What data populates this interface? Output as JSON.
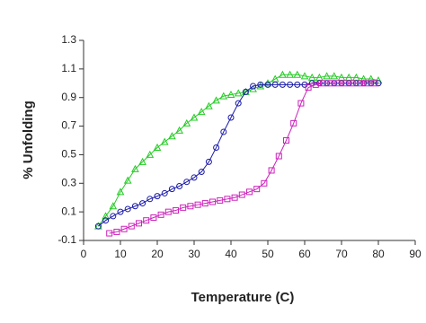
{
  "chart_data": {
    "type": "line",
    "xlabel": "Temperature (C)",
    "ylabel": "% Unfolding",
    "xlim": [
      0,
      90
    ],
    "xticks": [
      0,
      10,
      20,
      30,
      40,
      50,
      60,
      70,
      80,
      90
    ],
    "ylim": [
      -0.1,
      1.3
    ],
    "yticks": [
      -0.1,
      0.1,
      0.3,
      0.5,
      0.7,
      0.9,
      1.1,
      1.3
    ],
    "grid": false,
    "series": [
      {
        "color": "#22cc22",
        "marker": "triangle",
        "x": [
          4,
          6,
          8,
          10,
          12,
          14,
          16,
          18,
          20,
          22,
          24,
          26,
          28,
          30,
          32,
          34,
          36,
          38,
          40,
          42,
          44,
          46,
          48,
          50,
          52,
          54,
          56,
          58,
          60,
          62,
          64,
          66,
          68,
          70,
          72,
          74,
          76,
          78,
          80
        ],
        "values": [
          0.0,
          0.07,
          0.14,
          0.24,
          0.32,
          0.4,
          0.45,
          0.5,
          0.55,
          0.59,
          0.63,
          0.67,
          0.72,
          0.76,
          0.8,
          0.84,
          0.88,
          0.91,
          0.92,
          0.93,
          0.94,
          0.96,
          0.98,
          1.0,
          1.03,
          1.06,
          1.06,
          1.06,
          1.05,
          1.04,
          1.04,
          1.05,
          1.05,
          1.04,
          1.04,
          1.04,
          1.03,
          1.03,
          1.02
        ]
      },
      {
        "color": "#1a1aa8",
        "marker": "circle",
        "x": [
          4,
          6,
          8,
          10,
          12,
          14,
          16,
          18,
          20,
          22,
          24,
          26,
          28,
          30,
          32,
          34,
          36,
          38,
          40,
          42,
          44,
          46,
          48,
          50,
          52,
          54,
          56,
          58,
          60,
          62,
          64,
          66,
          68,
          70,
          72,
          74,
          76,
          78,
          80
        ],
        "values": [
          0.0,
          0.04,
          0.07,
          0.1,
          0.12,
          0.14,
          0.16,
          0.19,
          0.21,
          0.23,
          0.26,
          0.28,
          0.31,
          0.34,
          0.38,
          0.45,
          0.55,
          0.66,
          0.76,
          0.86,
          0.94,
          0.98,
          0.99,
          0.99,
          0.99,
          0.99,
          0.99,
          0.99,
          0.99,
          1.0,
          1.0,
          1.0,
          1.0,
          1.0,
          1.0,
          1.0,
          1.0,
          1.0,
          1.0
        ]
      },
      {
        "color": "#cc22bb",
        "marker": "square",
        "x": [
          7,
          9,
          11,
          13,
          15,
          17,
          19,
          21,
          23,
          25,
          27,
          29,
          31,
          33,
          35,
          37,
          39,
          41,
          43,
          45,
          47,
          49,
          51,
          53,
          55,
          57,
          59,
          61,
          63,
          65,
          67,
          69,
          71,
          73,
          75,
          77,
          79
        ],
        "values": [
          -0.05,
          -0.04,
          -0.02,
          0.0,
          0.02,
          0.04,
          0.06,
          0.08,
          0.1,
          0.11,
          0.13,
          0.14,
          0.15,
          0.16,
          0.17,
          0.18,
          0.19,
          0.2,
          0.22,
          0.24,
          0.26,
          0.3,
          0.39,
          0.49,
          0.6,
          0.72,
          0.86,
          0.97,
          0.99,
          1.0,
          1.0,
          1.0,
          1.0,
          1.0,
          1.0,
          1.0,
          1.0
        ]
      }
    ]
  }
}
